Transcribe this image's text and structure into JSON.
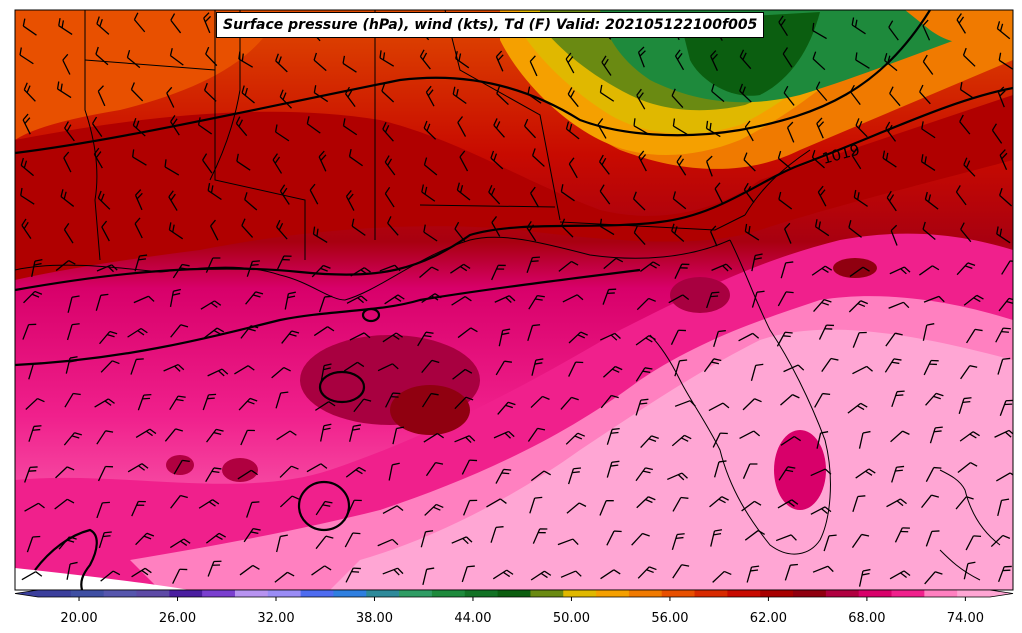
{
  "figure": {
    "title": "Surface pressure (hPa), wind (kts), Td (F) Valid: 202105122100f005",
    "isobar_label": "1019"
  },
  "colorbar": {
    "tick_labels": [
      "20.00",
      "26.00",
      "32.00",
      "38.00",
      "44.00",
      "50.00",
      "56.00",
      "62.00",
      "68.00",
      "74.00"
    ],
    "colors": [
      "#3b3f9c",
      "#3f4fa3",
      "#5656ad",
      "#5d4aa6",
      "#4a1ea0",
      "#7a3fcf",
      "#b793f0",
      "#9a8cf5",
      "#4e6cf0",
      "#2f7fe0",
      "#2e8a9a",
      "#2f9c64",
      "#1e8a3c",
      "#127225",
      "#0b5e10",
      "#6a8a12",
      "#e0b800",
      "#f5a000",
      "#f07a00",
      "#e85000",
      "#d82a00",
      "#c80a00",
      "#a80000",
      "#900010",
      "#b00040",
      "#d8006a",
      "#f0208c",
      "#ff80c0",
      "#ffa6d4"
    ]
  }
}
